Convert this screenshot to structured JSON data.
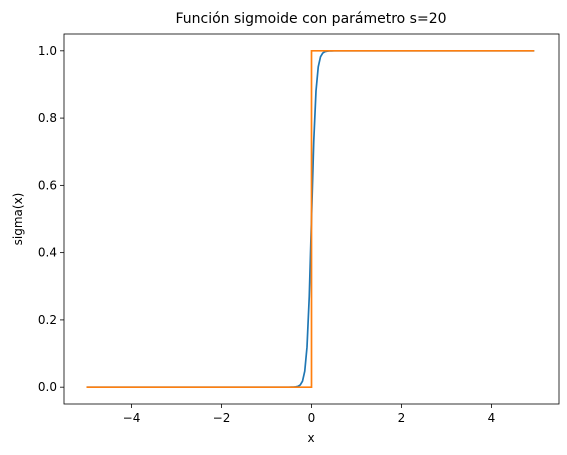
{
  "chart_data": {
    "type": "line",
    "title": "Función sigmoide con parámetro s=20",
    "xlabel": "x",
    "ylabel": "sigma(x)",
    "xlim": [
      -5.5,
      5.5
    ],
    "ylim": [
      -0.05,
      1.05
    ],
    "xticks": [
      -4,
      -2,
      0,
      2,
      4
    ],
    "xtick_labels": [
      "−4",
      "−2",
      "0",
      "2",
      "4"
    ],
    "yticks": [
      0.0,
      0.2,
      0.4,
      0.6,
      0.8,
      1.0
    ],
    "ytick_labels": [
      "0.0",
      "0.2",
      "0.4",
      "0.6",
      "0.8",
      "1.0"
    ],
    "grid": false,
    "series": [
      {
        "color": "#1f77b4",
        "function": "1/(1+exp(-20*x))",
        "x_range": [
          -5,
          4.95
        ],
        "step": 0.05
      },
      {
        "color": "#ff7f0e",
        "function": "step(x)",
        "x": [
          -5,
          0,
          0,
          4.95
        ],
        "y": [
          0,
          0,
          1,
          1
        ]
      }
    ]
  }
}
